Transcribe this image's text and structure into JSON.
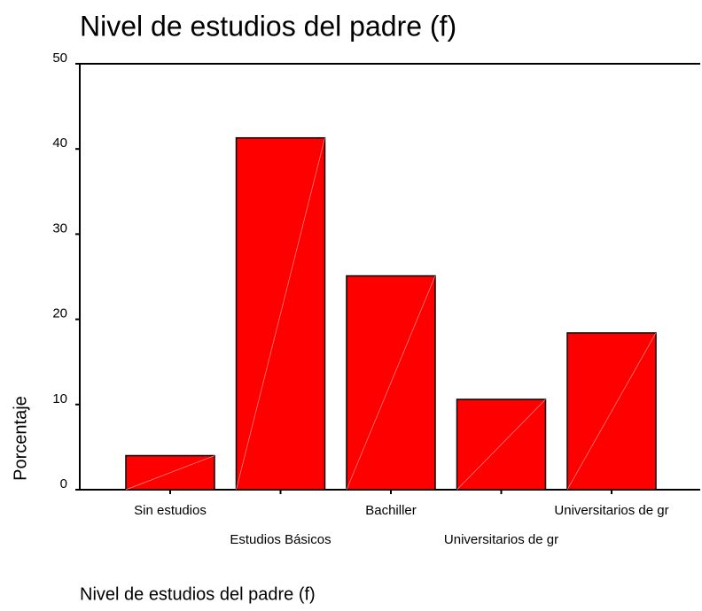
{
  "chart_data": {
    "type": "bar",
    "title": "Nivel de estudios del padre (f)",
    "x_label": "Nivel de estudios del padre (f)",
    "y_label": "Porcentaje",
    "categories": [
      "Sin estudios",
      "Estudios Básicos",
      "Bachiller",
      "Universitarios de gr",
      "Universitarios de gr"
    ],
    "values": [
      4.0,
      41.3,
      25.1,
      10.6,
      18.4
    ],
    "color": "#ff0000",
    "ylim": [
      0,
      50
    ],
    "yticks": [
      0,
      10,
      20,
      30,
      40,
      50
    ],
    "grid": false
  }
}
